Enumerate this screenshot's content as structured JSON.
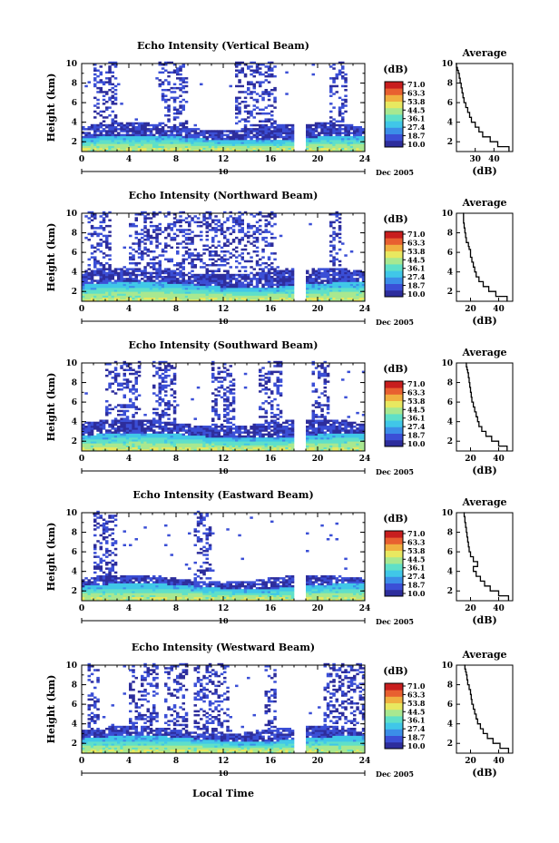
{
  "figure": {
    "ylabel": "Height (km)",
    "date": "Dec 2005",
    "day": "10",
    "xlabel": "Local Time",
    "cbar_unit": "(dB)",
    "avg_title": "Average",
    "avg_xlabel": "(dB)"
  },
  "colorbar": {
    "ticks": [
      "71.0",
      "63.3",
      "53.8",
      "44.5",
      "36.1",
      "27.4",
      "18.7",
      "10.0"
    ],
    "colors": [
      "#2d2d9c",
      "#3b4fd6",
      "#3b8ee8",
      "#40c7e8",
      "#5fe0c8",
      "#a8e890",
      "#e8e860",
      "#f0b040",
      "#e86030",
      "#c81e1e"
    ]
  },
  "chart_data": [
    {
      "type": "heatmap",
      "title": "Echo Intensity (Vertical Beam)",
      "xlabel": "Local Time",
      "ylabel": "Height (km)",
      "xlim": [
        0,
        24
      ],
      "ylim": [
        1,
        10
      ],
      "xticks": [
        0,
        4,
        8,
        12,
        16,
        20,
        24
      ],
      "yticks": [
        2,
        4,
        6,
        8,
        10
      ],
      "gap_hours": [
        18,
        19
      ],
      "low_layer_top_km": 2.3,
      "mid_layer_top_km": 3.5,
      "upper_echo_hours": [
        [
          1,
          3
        ],
        [
          6.5,
          9
        ],
        [
          13,
          16.5
        ],
        [
          21,
          22.5
        ]
      ],
      "avg_profile": {
        "xlim": [
          20,
          50
        ],
        "xticks": [
          30,
          40
        ],
        "db": [
          48,
          42,
          38,
          34,
          32,
          30,
          28,
          27,
          26,
          25,
          24,
          23.5,
          23,
          22.5,
          22,
          21.5,
          21,
          20.5,
          20,
          19.5
        ],
        "km": [
          1.0,
          1.5,
          2.0,
          2.5,
          3.0,
          3.5,
          4.0,
          4.5,
          5.0,
          5.5,
          6.0,
          6.5,
          7.0,
          7.5,
          8.0,
          8.5,
          9.0,
          9.3,
          9.6,
          10.0
        ]
      }
    },
    {
      "type": "heatmap",
      "title": "Echo Intensity (Northward Beam)",
      "xlabel": "Local Time",
      "ylabel": "Height (km)",
      "xlim": [
        0,
        24
      ],
      "ylim": [
        1,
        10
      ],
      "xticks": [
        0,
        4,
        8,
        12,
        16,
        20,
        24
      ],
      "yticks": [
        2,
        4,
        6,
        8,
        10
      ],
      "gap_hours": [
        18,
        19
      ],
      "low_layer_top_km": 2.6,
      "mid_layer_top_km": 4.0,
      "upper_echo_hours": [
        [
          0.5,
          2.5
        ],
        [
          4,
          16.5
        ],
        [
          21,
          22
        ]
      ],
      "avg_profile": {
        "xlim": [
          10,
          50
        ],
        "xticks": [
          20,
          40
        ],
        "db": [
          46,
          38,
          33,
          29,
          26,
          24,
          23,
          22,
          21,
          20,
          20,
          19,
          18.5,
          17,
          16.5,
          16,
          15.5,
          15,
          15,
          14.5
        ],
        "km": [
          1.0,
          1.5,
          2.0,
          2.5,
          3.0,
          3.5,
          4.0,
          4.5,
          5.0,
          5.5,
          6.0,
          6.3,
          6.6,
          7.0,
          7.5,
          8.0,
          8.5,
          9.0,
          9.5,
          10.0
        ]
      }
    },
    {
      "type": "heatmap",
      "title": "Echo Intensity (Southward Beam)",
      "xlabel": "Local Time",
      "ylabel": "Height (km)",
      "xlim": [
        0,
        24
      ],
      "ylim": [
        1,
        10
      ],
      "xticks": [
        0,
        4,
        8,
        12,
        16,
        20,
        24
      ],
      "yticks": [
        2,
        4,
        6,
        8,
        10
      ],
      "gap_hours": [
        18,
        19
      ],
      "low_layer_top_km": 2.5,
      "mid_layer_top_km": 3.8,
      "upper_echo_hours": [
        [
          2,
          5
        ],
        [
          6,
          8
        ],
        [
          11,
          13
        ],
        [
          15,
          17
        ],
        [
          19.5,
          21
        ]
      ],
      "avg_profile": {
        "xlim": [
          10,
          50
        ],
        "xticks": [
          20,
          40
        ],
        "db": [
          46,
          40,
          35,
          31,
          28,
          26,
          25,
          24,
          23,
          22,
          21,
          20.5,
          20,
          19.5,
          19,
          18.5,
          18,
          17.5,
          17,
          16.5
        ],
        "km": [
          1.0,
          1.5,
          2.0,
          2.5,
          3.0,
          3.5,
          4.0,
          4.5,
          5.0,
          5.5,
          6.0,
          6.5,
          7.0,
          7.5,
          8.0,
          8.5,
          9.0,
          9.3,
          9.6,
          10.0
        ]
      }
    },
    {
      "type": "heatmap",
      "title": "Echo Intensity (Eastward Beam)",
      "xlabel": "Local Time",
      "ylabel": "Height (km)",
      "xlim": [
        0,
        24
      ],
      "ylim": [
        1,
        10
      ],
      "xticks": [
        0,
        4,
        8,
        12,
        16,
        20,
        24
      ],
      "yticks": [
        2,
        4,
        6,
        8,
        10
      ],
      "gap_hours": [
        18,
        19
      ],
      "low_layer_top_km": 2.4,
      "mid_layer_top_km": 3.2,
      "upper_echo_hours": [
        [
          1,
          3
        ],
        [
          9.5,
          11
        ]
      ],
      "avg_profile": {
        "xlim": [
          10,
          50
        ],
        "xticks": [
          20,
          40
        ],
        "db": [
          47,
          40,
          34,
          30,
          27,
          24,
          22,
          25,
          22,
          20,
          19,
          18.5,
          18,
          17.5,
          17,
          16.5,
          16,
          16,
          15.5,
          15
        ],
        "km": [
          1.0,
          1.5,
          2.0,
          2.5,
          3.0,
          3.5,
          4.0,
          4.5,
          5.0,
          5.5,
          6.0,
          6.5,
          7.0,
          7.5,
          8.0,
          8.5,
          9.0,
          9.3,
          9.6,
          10.0
        ]
      }
    },
    {
      "type": "heatmap",
      "title": "Echo Intensity (Westward Beam)",
      "xlabel": "Local Time",
      "ylabel": "Height (km)",
      "xlim": [
        0,
        24
      ],
      "ylim": [
        1,
        10
      ],
      "xticks": [
        0,
        4,
        8,
        12,
        16,
        20,
        24
      ],
      "yticks": [
        2,
        4,
        6,
        8,
        10
      ],
      "gap_hours": [
        18,
        19
      ],
      "low_layer_top_km": 2.4,
      "mid_layer_top_km": 3.3,
      "upper_echo_hours": [
        [
          0.5,
          1.5
        ],
        [
          4,
          6.5
        ],
        [
          7,
          9
        ],
        [
          9.5,
          12.5
        ],
        [
          15.5,
          16.5
        ],
        [
          20.5,
          24
        ]
      ],
      "avg_profile": {
        "xlim": [
          10,
          50
        ],
        "xticks": [
          20,
          40
        ],
        "db": [
          47,
          41,
          36,
          32,
          29,
          27,
          25,
          24,
          23,
          22,
          21,
          20.5,
          20,
          19,
          18,
          17.5,
          17,
          16.5,
          16,
          15.5
        ],
        "km": [
          1.0,
          1.5,
          2.0,
          2.5,
          3.0,
          3.5,
          4.0,
          4.5,
          5.0,
          5.5,
          6.0,
          6.5,
          7.0,
          7.5,
          8.0,
          8.5,
          9.0,
          9.3,
          9.6,
          10.0
        ]
      }
    }
  ]
}
